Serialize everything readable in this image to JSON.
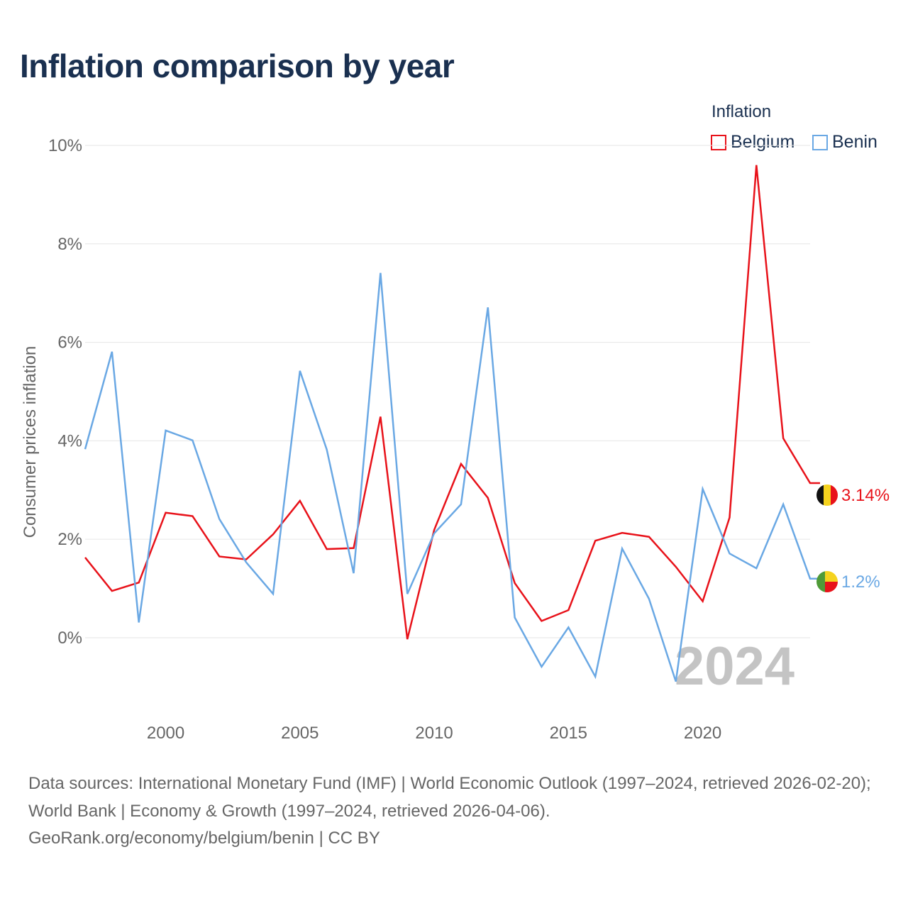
{
  "title": "Inflation comparison by year",
  "legend": {
    "title": "Inflation",
    "items": [
      {
        "label": "Belgium",
        "color": "#e8121a"
      },
      {
        "label": "Benin",
        "color": "#6aa8e4"
      }
    ]
  },
  "watermark_year": "2024",
  "end_labels": {
    "belgium": "3.14%",
    "benin": "1.2%"
  },
  "sources": {
    "line1": "Data sources: International Monetary Fund (IMF) | World Economic Outlook (1997–2024, retrieved 2026-02-20); World Bank | Economy & Growth (1997–2024, retrieved 2026-04-06).",
    "line2": "GeoRank.org/economy/belgium/benin | CC BY"
  },
  "chart_data": {
    "type": "line",
    "title": "Inflation comparison by year",
    "ylabel": "Consumer prices inflation",
    "xlabel": "",
    "x": [
      1997,
      1998,
      1999,
      2000,
      2001,
      2002,
      2003,
      2004,
      2005,
      2006,
      2007,
      2008,
      2009,
      2010,
      2011,
      2012,
      2013,
      2014,
      2015,
      2016,
      2017,
      2018,
      2019,
      2020,
      2021,
      2022,
      2023,
      2024
    ],
    "xlim": [
      1997,
      2024
    ],
    "ylim": [
      -1.6,
      10
    ],
    "xticks": [
      2000,
      2005,
      2010,
      2015,
      2020
    ],
    "xtick_labels": [
      "2000",
      "2005",
      "2010",
      "2015",
      "2020"
    ],
    "yticks": [
      0,
      2,
      4,
      6,
      8,
      10
    ],
    "ytick_labels": [
      "0%",
      "2%",
      "4%",
      "6%",
      "8%",
      "10%"
    ],
    "grid": true,
    "legend_position": "top-right",
    "series": [
      {
        "name": "Belgium",
        "color": "#e8121a",
        "values": [
          1.63,
          0.95,
          1.12,
          2.54,
          2.47,
          1.65,
          1.59,
          2.1,
          2.78,
          1.8,
          1.82,
          4.49,
          -0.03,
          2.19,
          3.53,
          2.84,
          1.11,
          0.34,
          0.56,
          1.97,
          2.13,
          2.05,
          1.44,
          0.74,
          2.44,
          9.6,
          4.05,
          3.14
        ]
      },
      {
        "name": "Benin",
        "color": "#6aa8e4",
        "values": [
          3.83,
          5.81,
          0.31,
          4.21,
          4.01,
          2.41,
          1.53,
          0.89,
          5.42,
          3.82,
          1.31,
          7.41,
          0.89,
          2.12,
          2.71,
          6.71,
          0.41,
          -0.59,
          0.21,
          -0.79,
          1.81,
          0.79,
          -0.89,
          3.02,
          1.71,
          1.41,
          2.71,
          1.2
        ]
      }
    ]
  }
}
